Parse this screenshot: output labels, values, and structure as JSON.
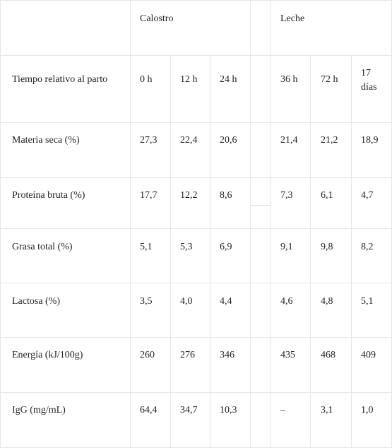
{
  "header": {
    "group1": "Calostro",
    "group2": "Leche"
  },
  "rows": [
    {
      "label": "Tiempo relativo al parto",
      "values": [
        "0 h",
        "12 h",
        "24 h",
        "36 h",
        "72 h",
        "17 días"
      ]
    },
    {
      "label": "Materia seca (%)",
      "values": [
        "27,3",
        "22,4",
        "20,6",
        "21,4",
        "21,2",
        "18,9"
      ]
    },
    {
      "label": "Proteína bruta (%)",
      "values": [
        "17,7",
        "12,2",
        "8,6",
        "7,3",
        "6,1",
        "4,7"
      ]
    },
    {
      "label": "Grasa total (%)",
      "values": [
        "5,1",
        "5,3",
        "6,9",
        "9,1",
        "9,8",
        "8,2"
      ]
    },
    {
      "label": "Lactosa (%)",
      "values": [
        "3,5",
        "4,0",
        "4,4",
        "4,6",
        "4,8",
        "5,1"
      ]
    },
    {
      "label": "Energía (kJ/100g)",
      "values": [
        "260",
        "276",
        "346",
        "435",
        "468",
        "409"
      ]
    },
    {
      "label": "IgG (mg/mL)",
      "values": [
        "64,4",
        "34,7",
        "10,3",
        "–",
        "3,1",
        "1,0"
      ]
    }
  ]
}
